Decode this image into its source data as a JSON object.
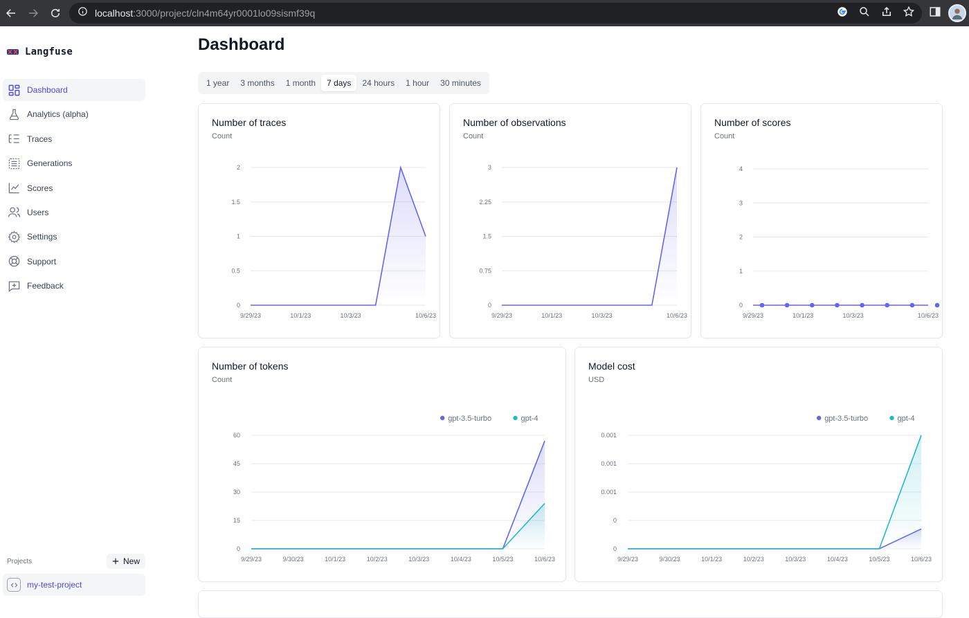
{
  "browser": {
    "url_host": "localhost",
    "url_path": ":3000/project/cln4m64yr0001lo09sismf39q"
  },
  "sidebar": {
    "brand": "Langfuse",
    "items": [
      {
        "label": "Dashboard",
        "icon": "dashboard-icon",
        "active": true
      },
      {
        "label": "Analytics (alpha)",
        "icon": "flask-icon",
        "active": false
      },
      {
        "label": "Traces",
        "icon": "list-tree-icon",
        "active": false
      },
      {
        "label": "Generations",
        "icon": "list-box-icon",
        "active": false
      },
      {
        "label": "Scores",
        "icon": "line-chart-icon",
        "active": false
      },
      {
        "label": "Users",
        "icon": "users-icon",
        "active": false
      },
      {
        "label": "Settings",
        "icon": "gear-icon",
        "active": false
      },
      {
        "label": "Support",
        "icon": "lifebuoy-icon",
        "active": false
      },
      {
        "label": "Feedback",
        "icon": "message-plus-icon",
        "active": false
      }
    ],
    "projects_label": "Projects",
    "new_button": "New",
    "project": "my-test-project"
  },
  "main": {
    "title": "Dashboard",
    "ranges": [
      "1 year",
      "3 months",
      "1 month",
      "7 days",
      "24 hours",
      "1 hour",
      "30 minutes"
    ],
    "active_range": "7 days"
  },
  "colors": {
    "indigo": "#6366f1",
    "cyan": "#22b8cf"
  },
  "chart_data": [
    {
      "id": "traces",
      "type": "area",
      "title": "Number of traces",
      "subtitle": "Count",
      "x_labels": [
        "9/29/23",
        "10/1/23",
        "10/3/23",
        "10/6/23"
      ],
      "x": [
        "9/29/23",
        "9/30/23",
        "10/1/23",
        "10/2/23",
        "10/3/23",
        "10/4/23",
        "10/5/23",
        "10/6/23"
      ],
      "y_ticks": [
        "0",
        "0.5",
        "1",
        "1.5",
        "2"
      ],
      "ylim": [
        0,
        2
      ],
      "series": [
        {
          "values": [
            0,
            0,
            0,
            0,
            0,
            0,
            2,
            1
          ]
        }
      ]
    },
    {
      "id": "observations",
      "type": "area",
      "title": "Number of observations",
      "subtitle": "Count",
      "x_labels": [
        "9/29/23",
        "10/1/23",
        "10/3/23",
        "10/6/23"
      ],
      "x": [
        "9/29/23",
        "9/30/23",
        "10/1/23",
        "10/2/23",
        "10/3/23",
        "10/4/23",
        "10/5/23",
        "10/6/23"
      ],
      "y_ticks": [
        "0",
        "0.75",
        "1.5",
        "2.25",
        "3"
      ],
      "ylim": [
        0,
        3
      ],
      "series": [
        {
          "values": [
            0,
            0,
            0,
            0,
            0,
            0,
            0,
            3
          ]
        }
      ]
    },
    {
      "id": "scores",
      "type": "line",
      "title": "Number of scores",
      "subtitle": "Count",
      "x_labels": [
        "9/29/23",
        "10/1/23",
        "10/3/23",
        "10/6/23"
      ],
      "x": [
        "9/29/23",
        "9/30/23",
        "10/1/23",
        "10/2/23",
        "10/3/23",
        "10/4/23",
        "10/5/23",
        "10/6/23"
      ],
      "y_ticks": [
        "0",
        "1",
        "2",
        "3",
        "4"
      ],
      "ylim": [
        0,
        4
      ],
      "series": [
        {
          "values": [
            0,
            0,
            0,
            0,
            0,
            0,
            0,
            0
          ]
        }
      ]
    },
    {
      "id": "tokens",
      "type": "area",
      "title": "Number of tokens",
      "subtitle": "Count",
      "x_labels": [
        "9/29/23",
        "9/30/23",
        "10/1/23",
        "10/2/23",
        "10/3/23",
        "10/4/23",
        "10/5/23",
        "10/6/23"
      ],
      "x": [
        "9/29/23",
        "9/30/23",
        "10/1/23",
        "10/2/23",
        "10/3/23",
        "10/4/23",
        "10/5/23",
        "10/6/23"
      ],
      "y_ticks": [
        "0",
        "15",
        "30",
        "45",
        "60"
      ],
      "ylim": [
        0,
        60
      ],
      "legend": "top-right",
      "series": [
        {
          "name": "gpt-3.5-turbo",
          "color": "#6366f1",
          "values": [
            0,
            0,
            0,
            0,
            0,
            0,
            0,
            57
          ]
        },
        {
          "name": "gpt-4",
          "color": "#22b8cf",
          "values": [
            0,
            0,
            0,
            0,
            0,
            0,
            0,
            24
          ]
        }
      ]
    },
    {
      "id": "cost",
      "type": "area",
      "title": "Model cost",
      "subtitle": "USD",
      "x_labels": [
        "9/29/23",
        "9/30/23",
        "10/1/23",
        "10/2/23",
        "10/3/23",
        "10/4/23",
        "10/5/23",
        "10/6/23"
      ],
      "x": [
        "9/29/23",
        "9/30/23",
        "10/1/23",
        "10/2/23",
        "10/3/23",
        "10/4/23",
        "10/5/23",
        "10/6/23"
      ],
      "y_ticks": [
        "0",
        "0",
        "0.001",
        "0.001",
        "0.001"
      ],
      "ylim": [
        0,
        0.0016
      ],
      "legend": "top-right",
      "series": [
        {
          "name": "gpt-3.5-turbo",
          "color": "#6366f1",
          "values": [
            0,
            0,
            0,
            0,
            0,
            0,
            0,
            0.00028
          ]
        },
        {
          "name": "gpt-4",
          "color": "#22b8cf",
          "values": [
            0,
            0,
            0,
            0,
            0,
            0,
            0,
            0.0016
          ]
        }
      ]
    }
  ]
}
